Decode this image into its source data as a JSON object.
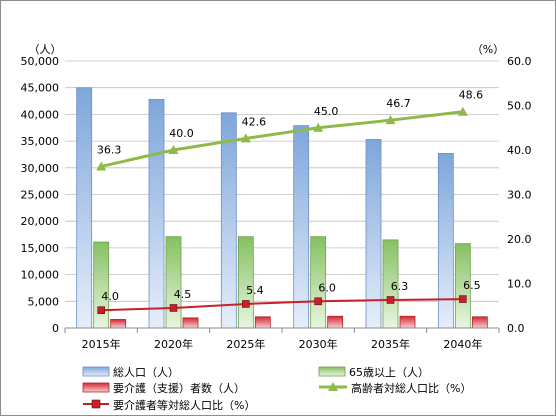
{
  "chart_data": {
    "type": "bar",
    "categories": [
      "2015年",
      "2020年",
      "2025年",
      "2030年",
      "2035年",
      "2040年"
    ],
    "left_axis": {
      "unit": "（人）",
      "ylim": [
        0,
        50000
      ],
      "ticks": [
        "0",
        "5,000",
        "10,000",
        "15,000",
        "20,000",
        "25,000",
        "30,000",
        "35,000",
        "40,000",
        "45,000",
        "50,000"
      ]
    },
    "right_axis": {
      "unit": "（%）",
      "ylim": [
        0,
        60
      ],
      "ticks": [
        "0.0",
        "10.0",
        "20.0",
        "30.0",
        "40.0",
        "50.0",
        "60.0"
      ]
    },
    "series": [
      {
        "name": "総人口（人）",
        "kind": "bar",
        "axis": "left",
        "color": "#7fa7dc",
        "values": [
          45000,
          42800,
          40300,
          37900,
          35300,
          32700
        ]
      },
      {
        "name": "65歳以上（人）",
        "kind": "bar",
        "axis": "left",
        "color": "#8fc66d",
        "values": [
          16100,
          17100,
          17100,
          17100,
          16500,
          15800
        ]
      },
      {
        "name": "要介護（支援）者数（人）",
        "kind": "bar",
        "axis": "left",
        "color": "#d9363e",
        "values": [
          1600,
          1900,
          2100,
          2200,
          2200,
          2100
        ]
      },
      {
        "name": "高齢者対総人口比（%）",
        "kind": "line",
        "axis": "right",
        "color": "#8dba49",
        "values": [
          36.3,
          40.0,
          42.6,
          45.0,
          46.7,
          48.6
        ],
        "labels": [
          "36.3",
          "40.0",
          "42.6",
          "45.0",
          "46.7",
          "48.6"
        ]
      },
      {
        "name": "要介護者等対総人口比（%）",
        "kind": "line",
        "axis": "right",
        "color": "#c8202a",
        "values": [
          4.0,
          4.5,
          5.4,
          6.0,
          6.3,
          6.5
        ],
        "labels": [
          "4.0",
          "4.5",
          "5.4",
          "6.0",
          "6.3",
          "6.5"
        ]
      }
    ],
    "grid": true,
    "legend_position": "bottom"
  }
}
